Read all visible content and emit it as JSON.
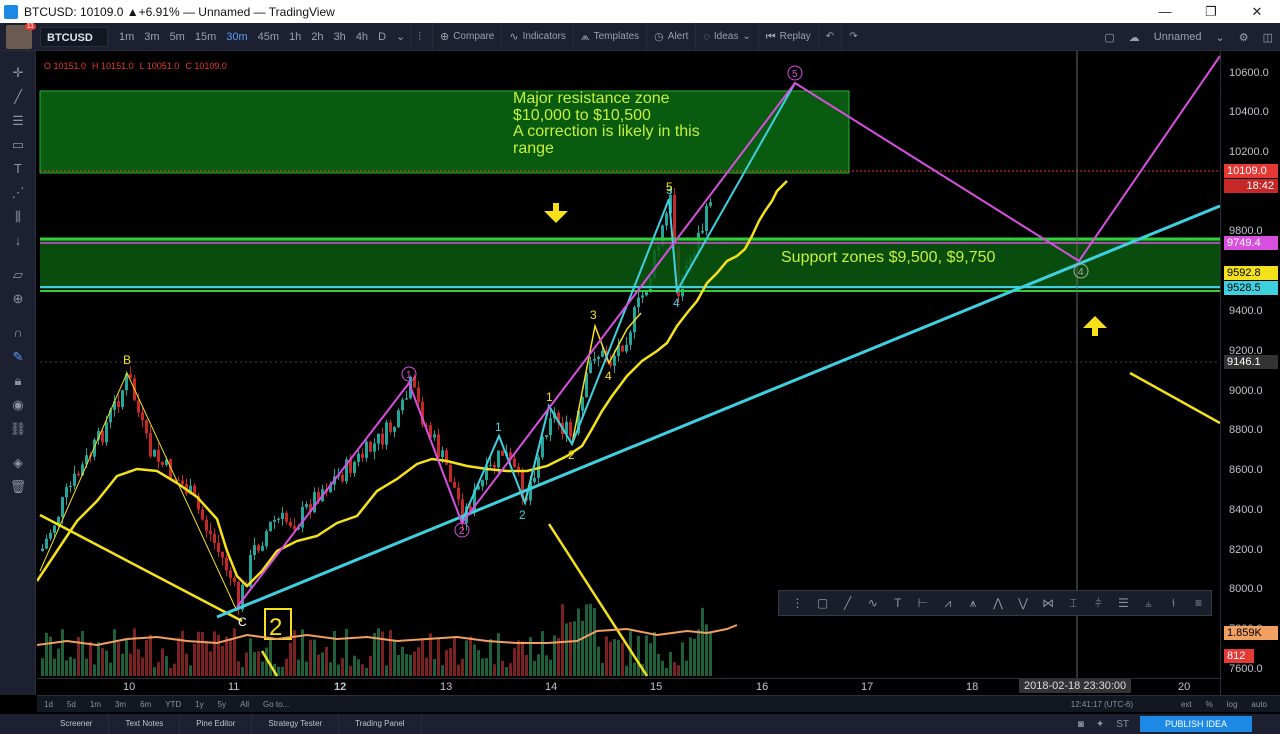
{
  "window": {
    "title": "BTCUSD: 10109.0 ▲+6.91% — Unnamed — TradingView",
    "min": "—",
    "max": "❐",
    "close": "✕"
  },
  "toolbar": {
    "avatar_badge": "11",
    "symbol": "BTCUSD",
    "intervals": [
      "1m",
      "3m",
      "5m",
      "15m",
      "30m",
      "45m",
      "1h",
      "2h",
      "3h",
      "4h",
      "D"
    ],
    "active_interval": "30m",
    "compare": "Compare",
    "indicators": "Indicators",
    "templates": "Templates",
    "alert": "Alert",
    "ideas": "Ideas",
    "replay": "Replay",
    "layout_name": "Unnamed"
  },
  "legend": {
    "o": "O 10151.0",
    "h": "H 10151.0",
    "l": "L 10051.0",
    "c": "C 10109.0"
  },
  "annotations": {
    "resistance": [
      "Major resistance zone",
      "$10,000 to $10,500",
      "A correction is likely in this",
      "range"
    ],
    "support": "Support zones $9,500, $9,750",
    "box_label": "2"
  },
  "wave_labels": {
    "b": "B",
    "c": "C",
    "c1": "1",
    "c2": "2",
    "c4": "4",
    "c5": "5",
    "y1": "1",
    "y2": "2",
    "y3": "3",
    "y4": "4",
    "y5": "5",
    "w1": "1",
    "w2": "2",
    "w3": "3",
    "w4": "4",
    "w5": "5"
  },
  "price_axis": {
    "ticks": [
      "10600.0",
      "10400.0",
      "10200.0",
      "9800.0",
      "9400.0",
      "9200.0",
      "9000.0",
      "8800.0",
      "8600.0",
      "8400.0",
      "8200.0",
      "8000.0",
      "7800.0",
      "7600.0"
    ],
    "last_price": "10109.0",
    "countdown": "18:42",
    "level_9749": "9749.4",
    "level_9592": "9592.8",
    "level_9528": "9528.5",
    "crosshair": "9146.1",
    "vol1": "1.859K",
    "vol2": "812"
  },
  "time_axis": {
    "labels": [
      "10",
      "11",
      "12",
      "13",
      "14",
      "15",
      "16",
      "17",
      "18",
      "20"
    ],
    "crosshair": "2018-02-18 23:30:00"
  },
  "range_bar": {
    "ranges": [
      "1d",
      "5d",
      "1m",
      "3m",
      "6m",
      "YTD",
      "1y",
      "5y",
      "All",
      "Go to..."
    ],
    "utc": "12:41:17 (UTC-6)",
    "opts": [
      "ext",
      "%",
      "log",
      "auto"
    ]
  },
  "bottom_tabs": [
    "Screener",
    "Text Notes",
    "Pine Editor",
    "Strategy Tester",
    "Trading Panel"
  ],
  "publish": "PUBLISH IDEA",
  "colors": {
    "accent": "#1e88e5",
    "yellow": "#f5e11b",
    "cyan": "#3fd0e0",
    "magenta": "#d84fe0",
    "green_zone": "#0a6b12",
    "red": "#e53935"
  }
}
